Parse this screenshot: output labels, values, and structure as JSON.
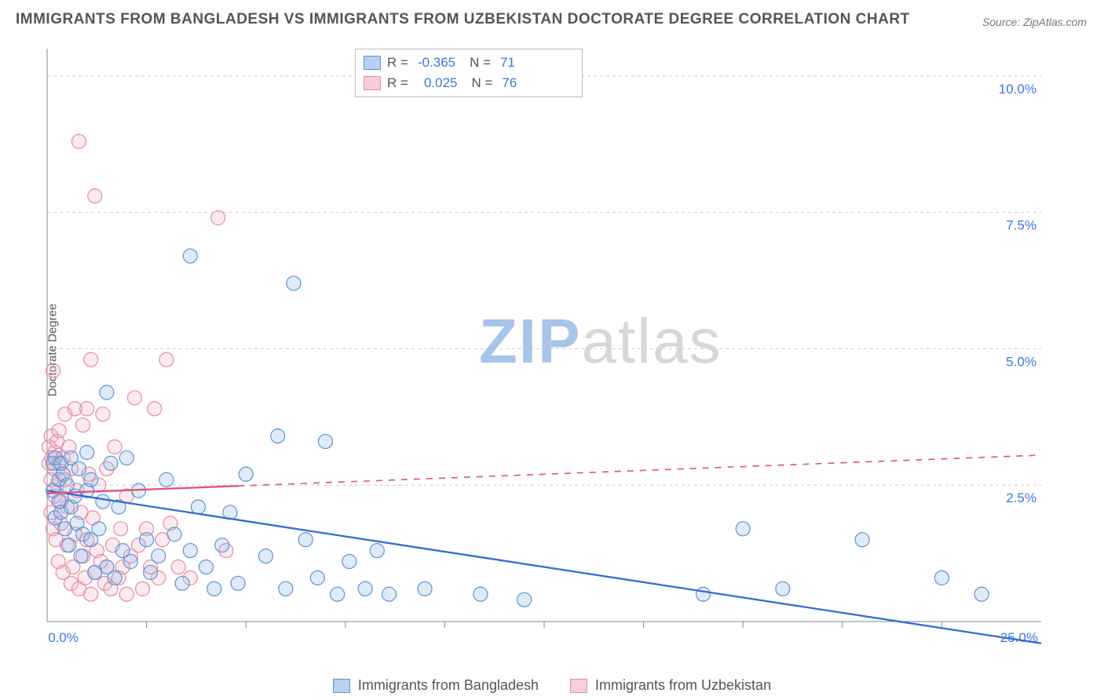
{
  "title": "IMMIGRANTS FROM BANGLADESH VS IMMIGRANTS FROM UZBEKISTAN DOCTORATE DEGREE CORRELATION CHART",
  "source_label": "Source:",
  "source_name": "ZipAtlas.com",
  "ylabel": "Doctorate Degree",
  "watermark_a": "ZIP",
  "watermark_b": "atlas",
  "chart": {
    "type": "scatter",
    "background_color": "#ffffff",
    "grid_color": "#cccccc",
    "axis_color": "#888888",
    "xlim": [
      0,
      25
    ],
    "ylim": [
      0,
      10.5
    ],
    "y_ticks": [
      2.5,
      5.0,
      7.5,
      10.0
    ],
    "y_tick_labels": [
      "2.5%",
      "5.0%",
      "7.5%",
      "10.0%"
    ],
    "x_minor_ticks": [
      2.5,
      5.0,
      7.5,
      10.0,
      12.5,
      15.0,
      17.5,
      20.0,
      22.5
    ],
    "corner_y_label": "0.0%",
    "corner_x_label": "25.0%",
    "marker_radius": 9,
    "marker_stroke_width": 1.2,
    "marker_fill_opacity": 0.28,
    "series": [
      {
        "id": "bangladesh",
        "label": "Immigrants from Bangladesh",
        "color_stroke": "#5a94d6",
        "color_fill": "#8fb8e6",
        "swatch_fill": "#b9d0ee",
        "swatch_border": "#5a94d6",
        "R": "-0.365",
        "N": "71",
        "trend": {
          "x1": 0,
          "y1": 2.4,
          "x2": 25,
          "y2": -0.4,
          "solid_until_x": 25,
          "color": "#2f6fd0",
          "width": 2.3
        },
        "points": [
          [
            0.15,
            2.9
          ],
          [
            0.15,
            2.4
          ],
          [
            0.2,
            3.0
          ],
          [
            0.2,
            1.9
          ],
          [
            0.3,
            2.6
          ],
          [
            0.3,
            2.2
          ],
          [
            0.35,
            2.9
          ],
          [
            0.35,
            2.0
          ],
          [
            0.4,
            2.7
          ],
          [
            0.45,
            1.7
          ],
          [
            0.5,
            2.5
          ],
          [
            0.55,
            1.4
          ],
          [
            0.6,
            2.1
          ],
          [
            0.6,
            3.0
          ],
          [
            0.7,
            2.3
          ],
          [
            0.75,
            1.8
          ],
          [
            0.8,
            2.8
          ],
          [
            0.85,
            1.2
          ],
          [
            0.9,
            1.6
          ],
          [
            1.0,
            2.4
          ],
          [
            1.0,
            3.1
          ],
          [
            1.1,
            1.5
          ],
          [
            1.1,
            2.6
          ],
          [
            1.2,
            0.9
          ],
          [
            1.3,
            1.7
          ],
          [
            1.4,
            2.2
          ],
          [
            1.5,
            4.2
          ],
          [
            1.5,
            1.0
          ],
          [
            1.6,
            2.9
          ],
          [
            1.7,
            0.8
          ],
          [
            1.8,
            2.1
          ],
          [
            1.9,
            1.3
          ],
          [
            2.0,
            3.0
          ],
          [
            2.1,
            1.1
          ],
          [
            2.3,
            2.4
          ],
          [
            2.5,
            1.5
          ],
          [
            2.6,
            0.9
          ],
          [
            2.8,
            1.2
          ],
          [
            3.0,
            2.6
          ],
          [
            3.2,
            1.6
          ],
          [
            3.4,
            0.7
          ],
          [
            3.6,
            6.7
          ],
          [
            3.6,
            1.3
          ],
          [
            3.8,
            2.1
          ],
          [
            4.0,
            1.0
          ],
          [
            4.2,
            0.6
          ],
          [
            4.4,
            1.4
          ],
          [
            4.6,
            2.0
          ],
          [
            4.8,
            0.7
          ],
          [
            5.0,
            2.7
          ],
          [
            5.5,
            1.2
          ],
          [
            5.8,
            3.4
          ],
          [
            6.0,
            0.6
          ],
          [
            6.2,
            6.2
          ],
          [
            6.5,
            1.5
          ],
          [
            6.8,
            0.8
          ],
          [
            7.0,
            3.3
          ],
          [
            7.3,
            0.5
          ],
          [
            7.6,
            1.1
          ],
          [
            8.0,
            0.6
          ],
          [
            8.3,
            1.3
          ],
          [
            8.6,
            0.5
          ],
          [
            9.5,
            0.6
          ],
          [
            10.9,
            0.5
          ],
          [
            12.0,
            0.4
          ],
          [
            16.5,
            0.5
          ],
          [
            17.5,
            1.7
          ],
          [
            18.5,
            0.6
          ],
          [
            20.5,
            1.5
          ],
          [
            22.5,
            0.8
          ],
          [
            23.5,
            0.5
          ]
        ]
      },
      {
        "id": "uzbekistan",
        "label": "Immigrants from Uzbekistan",
        "color_stroke": "#e68aa5",
        "color_fill": "#f2b3c5",
        "swatch_fill": "#f6cdd9",
        "swatch_border": "#e68aa5",
        "R": "0.025",
        "N": "76",
        "trend": {
          "x1": 0,
          "y1": 2.35,
          "x2": 25,
          "y2": 3.05,
          "solid_until_x": 4.8,
          "color": "#e05078",
          "width": 2.3
        },
        "points": [
          [
            0.05,
            2.9
          ],
          [
            0.05,
            3.2
          ],
          [
            0.1,
            2.6
          ],
          [
            0.1,
            3.4
          ],
          [
            0.1,
            2.0
          ],
          [
            0.12,
            3.0
          ],
          [
            0.15,
            4.6
          ],
          [
            0.15,
            1.7
          ],
          [
            0.18,
            2.8
          ],
          [
            0.2,
            2.3
          ],
          [
            0.2,
            3.1
          ],
          [
            0.22,
            1.5
          ],
          [
            0.25,
            2.5
          ],
          [
            0.25,
            3.3
          ],
          [
            0.28,
            1.1
          ],
          [
            0.3,
            2.9
          ],
          [
            0.3,
            3.5
          ],
          [
            0.35,
            1.8
          ],
          [
            0.35,
            2.2
          ],
          [
            0.4,
            3.0
          ],
          [
            0.4,
            0.9
          ],
          [
            0.45,
            2.6
          ],
          [
            0.45,
            3.8
          ],
          [
            0.5,
            1.4
          ],
          [
            0.5,
            2.1
          ],
          [
            0.55,
            3.2
          ],
          [
            0.6,
            0.7
          ],
          [
            0.6,
            2.8
          ],
          [
            0.65,
            1.0
          ],
          [
            0.7,
            3.9
          ],
          [
            0.7,
            1.6
          ],
          [
            0.75,
            2.4
          ],
          [
            0.8,
            8.8
          ],
          [
            0.8,
            0.6
          ],
          [
            0.85,
            2.0
          ],
          [
            0.9,
            1.2
          ],
          [
            0.9,
            3.6
          ],
          [
            0.95,
            0.8
          ],
          [
            1.0,
            3.9
          ],
          [
            1.0,
            1.5
          ],
          [
            1.05,
            2.7
          ],
          [
            1.1,
            0.5
          ],
          [
            1.1,
            4.8
          ],
          [
            1.15,
            1.9
          ],
          [
            1.2,
            7.8
          ],
          [
            1.2,
            0.9
          ],
          [
            1.25,
            1.3
          ],
          [
            1.3,
            2.5
          ],
          [
            1.35,
            1.1
          ],
          [
            1.4,
            3.8
          ],
          [
            1.45,
            0.7
          ],
          [
            1.5,
            2.8
          ],
          [
            1.5,
            1.0
          ],
          [
            1.6,
            0.6
          ],
          [
            1.65,
            1.4
          ],
          [
            1.7,
            3.2
          ],
          [
            1.8,
            0.8
          ],
          [
            1.85,
            1.7
          ],
          [
            1.9,
            1.0
          ],
          [
            2.0,
            2.3
          ],
          [
            2.0,
            0.5
          ],
          [
            2.1,
            1.2
          ],
          [
            2.2,
            4.1
          ],
          [
            2.3,
            1.4
          ],
          [
            2.4,
            0.6
          ],
          [
            2.5,
            1.7
          ],
          [
            2.6,
            1.0
          ],
          [
            2.7,
            3.9
          ],
          [
            2.8,
            0.8
          ],
          [
            2.9,
            1.5
          ],
          [
            3.0,
            4.8
          ],
          [
            3.1,
            1.8
          ],
          [
            3.3,
            1.0
          ],
          [
            3.6,
            0.8
          ],
          [
            4.3,
            7.4
          ],
          [
            4.5,
            1.3
          ]
        ]
      }
    ]
  },
  "legend_labels": {
    "R": "R =",
    "N": "N ="
  }
}
